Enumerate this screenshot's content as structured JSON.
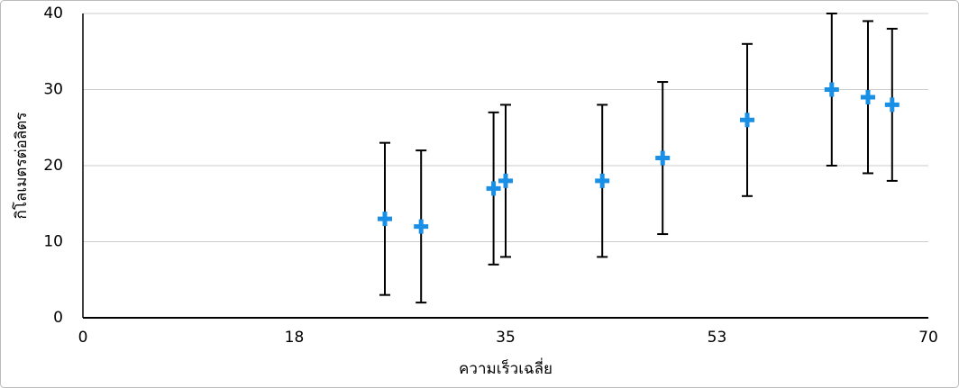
{
  "chart_data": {
    "type": "scatter",
    "x_label": "ความเร็วเฉลี่ย",
    "y_label": "กิโลเมตรต่อลิตร",
    "series": [
      {
        "color": "#1a8fe6",
        "x": [
          25,
          28,
          34,
          35,
          43,
          48,
          55,
          62,
          65,
          67
        ],
        "values": [
          13,
          12,
          17,
          18,
          18,
          21,
          26,
          30,
          29,
          28
        ],
        "errors": [
          10,
          10,
          10,
          10,
          10,
          10,
          10,
          10,
          10,
          10
        ]
      }
    ],
    "xlim": [
      0,
      70
    ],
    "xticks": [
      0,
      {
        "value": 17.5,
        "label": "18"
      },
      35,
      {
        "value": 52.5,
        "label": "53"
      },
      70
    ],
    "ylim": [
      0,
      40
    ],
    "yticks": [
      0,
      10,
      20,
      30,
      40
    ],
    "grid": true
  }
}
